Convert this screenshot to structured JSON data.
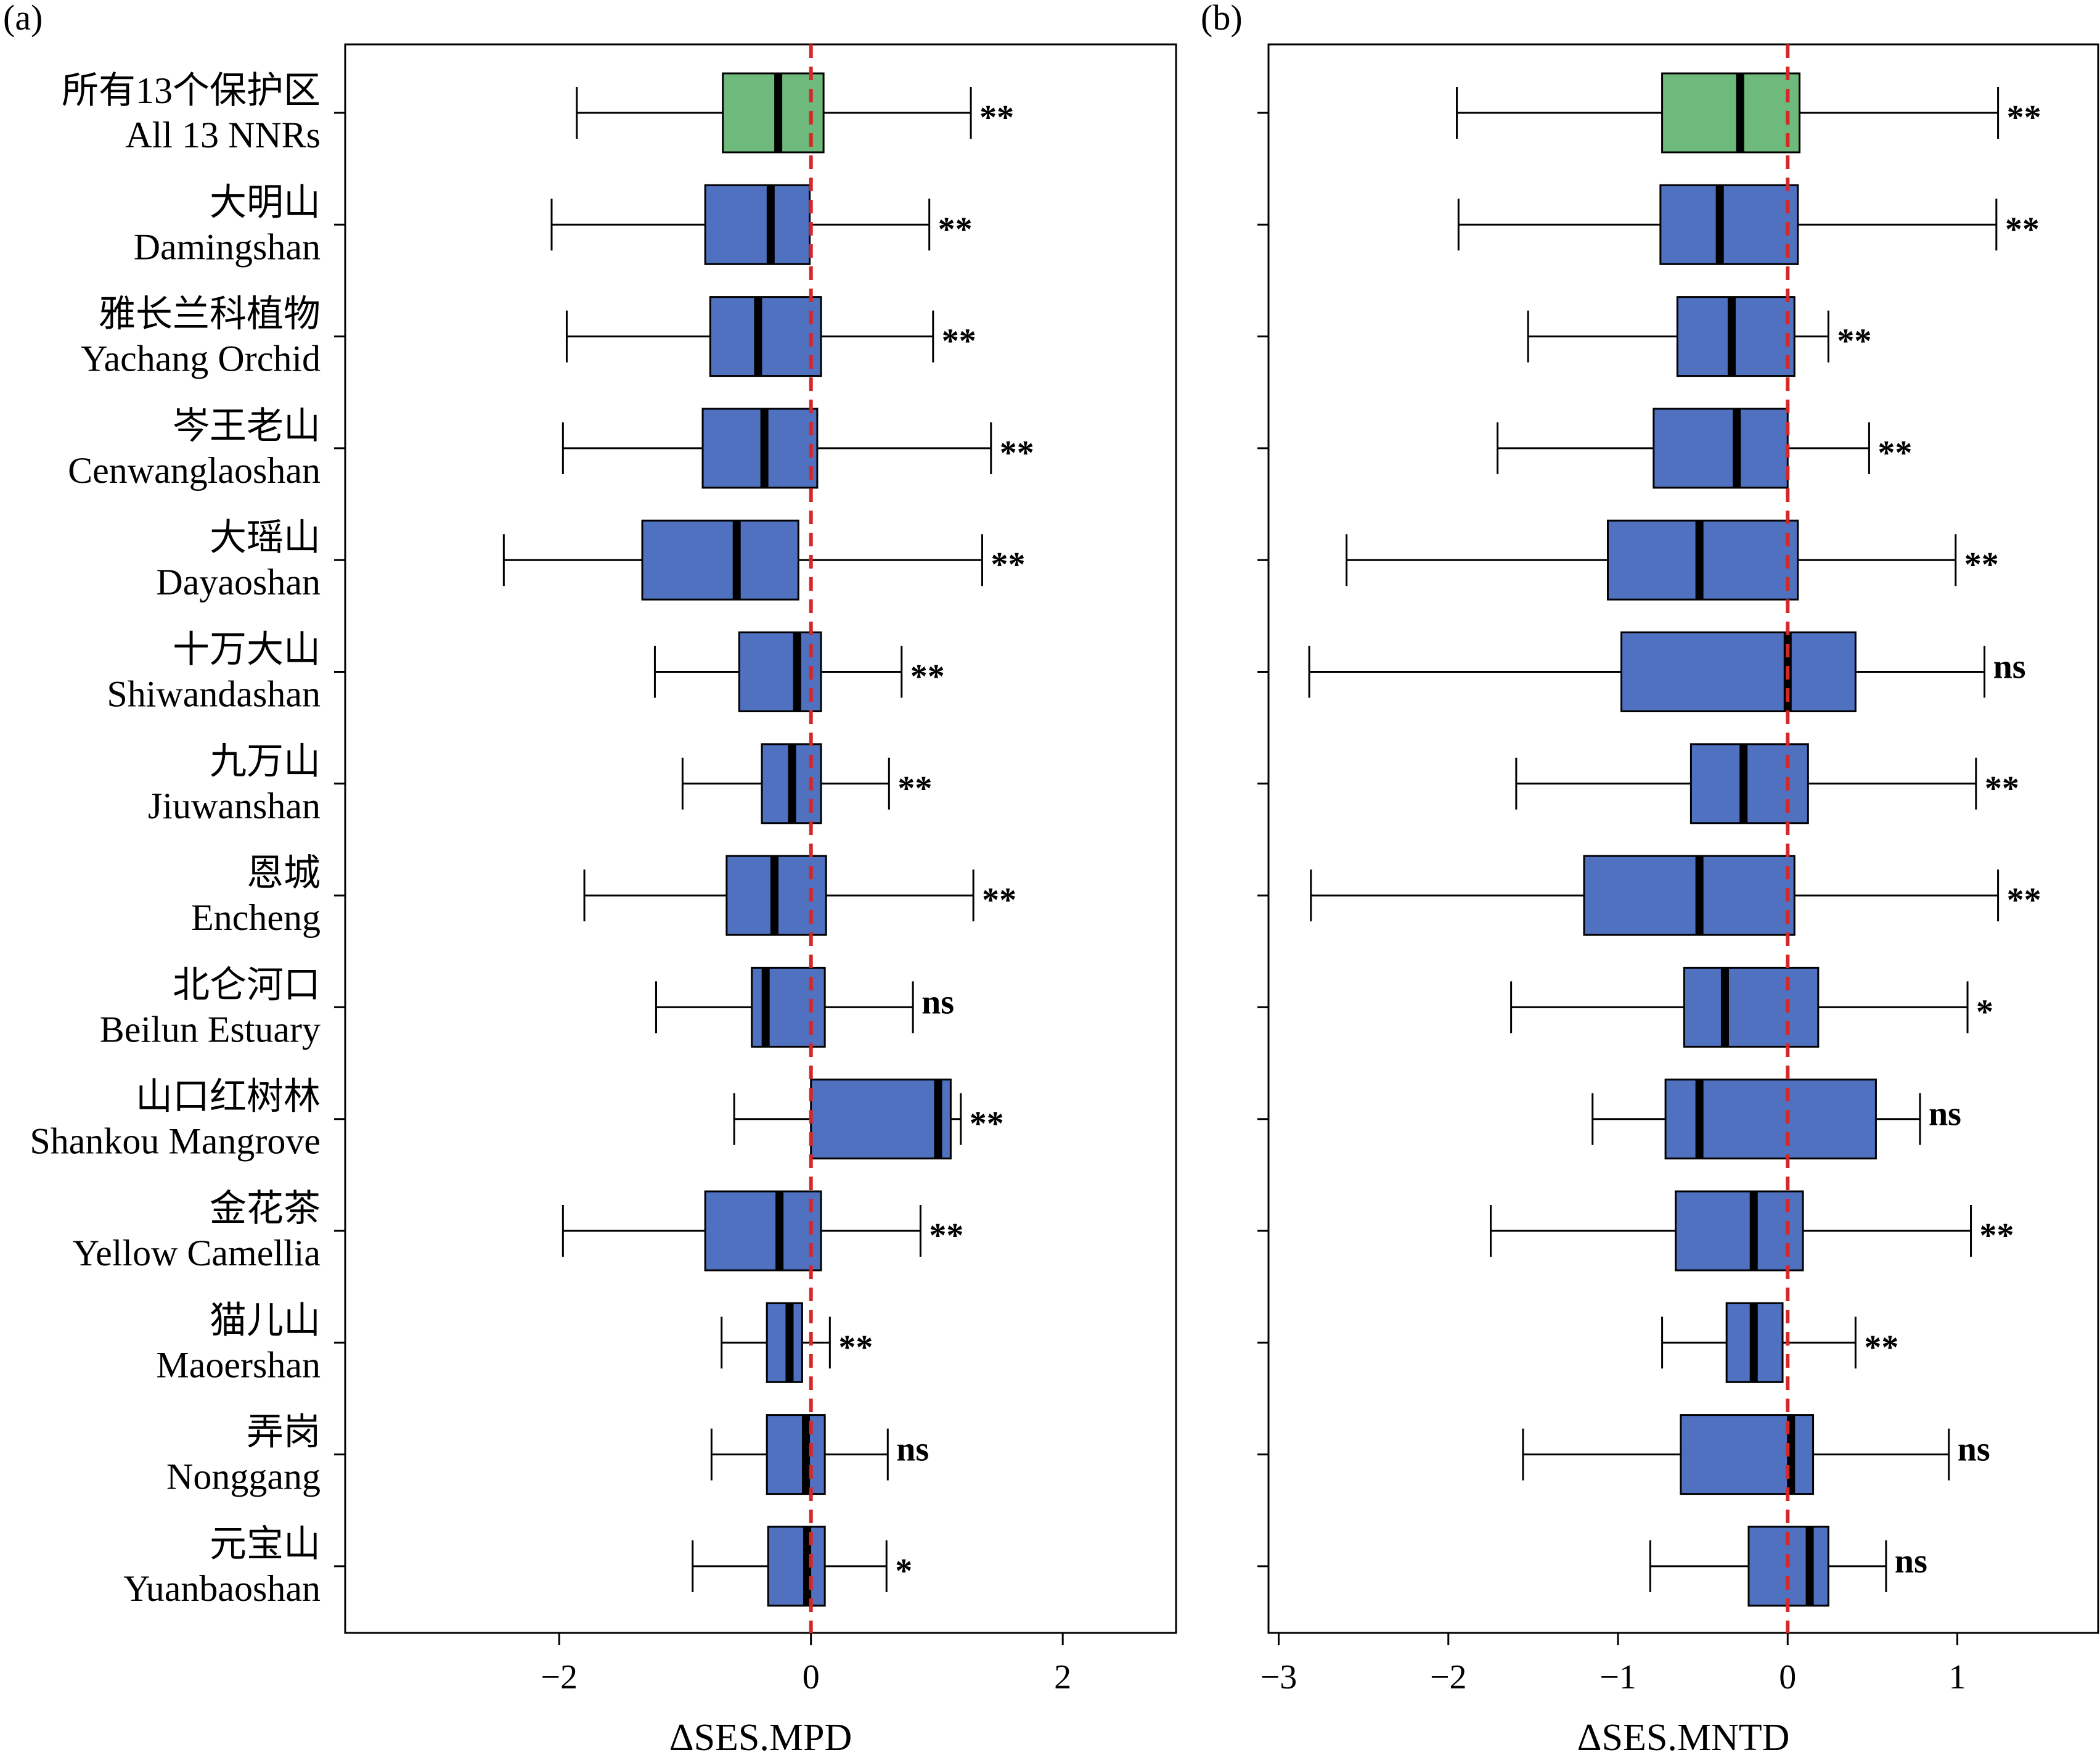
{
  "chart_data": [
    {
      "type": "box",
      "panel_label": "(a)",
      "xlabel": "ΔSES.MPD",
      "xlim": [
        -3.7,
        2.9
      ],
      "xticks": [
        -2,
        0,
        2
      ],
      "xtick_labels": [
        "−2",
        "0",
        "2"
      ],
      "reference_line": 0,
      "boxes": [
        {
          "min": -1.86,
          "q1": -0.7,
          "median": -0.26,
          "q3": 0.1,
          "max": 1.27,
          "sig": "**",
          "color": "#6dba7c"
        },
        {
          "min": -2.06,
          "q1": -0.84,
          "median": -0.32,
          "q3": -0.01,
          "max": 0.94,
          "sig": "**",
          "color": "#4f71c0"
        },
        {
          "min": -1.94,
          "q1": -0.8,
          "median": -0.42,
          "q3": 0.08,
          "max": 0.97,
          "sig": "**",
          "color": "#4f71c0"
        },
        {
          "min": -1.97,
          "q1": -0.86,
          "median": -0.37,
          "q3": 0.05,
          "max": 1.43,
          "sig": "**",
          "color": "#4f71c0"
        },
        {
          "min": -2.44,
          "q1": -1.34,
          "median": -0.59,
          "q3": -0.1,
          "max": 1.36,
          "sig": "**",
          "color": "#4f71c0"
        },
        {
          "min": -1.24,
          "q1": -0.57,
          "median": -0.11,
          "q3": 0.08,
          "max": 0.72,
          "sig": "**",
          "color": "#4f71c0"
        },
        {
          "min": -1.02,
          "q1": -0.39,
          "median": -0.15,
          "q3": 0.08,
          "max": 0.62,
          "sig": "**",
          "color": "#4f71c0"
        },
        {
          "min": -1.8,
          "q1": -0.67,
          "median": -0.29,
          "q3": 0.12,
          "max": 1.29,
          "sig": "**",
          "color": "#4f71c0"
        },
        {
          "min": -1.23,
          "q1": -0.47,
          "median": -0.36,
          "q3": 0.11,
          "max": 0.81,
          "sig": "ns",
          "color": "#4f71c0"
        },
        {
          "min": -0.61,
          "q1": 0.0,
          "median": 1.01,
          "q3": 1.11,
          "max": 1.19,
          "sig": "**",
          "color": "#4f71c0"
        },
        {
          "min": -1.97,
          "q1": -0.84,
          "median": -0.25,
          "q3": 0.08,
          "max": 0.87,
          "sig": "**",
          "color": "#4f71c0"
        },
        {
          "min": -0.71,
          "q1": -0.35,
          "median": -0.17,
          "q3": -0.07,
          "max": 0.15,
          "sig": "**",
          "color": "#4f71c0"
        },
        {
          "min": -0.79,
          "q1": -0.35,
          "median": -0.04,
          "q3": 0.11,
          "max": 0.61,
          "sig": "ns",
          "color": "#4f71c0"
        },
        {
          "min": -0.94,
          "q1": -0.34,
          "median": -0.03,
          "q3": 0.11,
          "max": 0.6,
          "sig": "*",
          "color": "#4f71c0"
        }
      ]
    },
    {
      "type": "box",
      "panel_label": "(b)",
      "xlabel": "ΔSES.MNTD",
      "xlim": [
        -3.06,
        1.83
      ],
      "xticks": [
        -3,
        -2,
        -1,
        0,
        1
      ],
      "xtick_labels": [
        "−3",
        "−2",
        "−1",
        "0",
        "1"
      ],
      "reference_line": 0,
      "boxes": [
        {
          "min": -1.95,
          "q1": -0.74,
          "median": -0.28,
          "q3": 0.07,
          "max": 1.24,
          "sig": "**",
          "color": "#6dba7c"
        },
        {
          "min": -1.94,
          "q1": -0.75,
          "median": -0.4,
          "q3": 0.06,
          "max": 1.23,
          "sig": "**",
          "color": "#4f71c0"
        },
        {
          "min": -1.53,
          "q1": -0.65,
          "median": -0.33,
          "q3": 0.04,
          "max": 0.24,
          "sig": "**",
          "color": "#4f71c0"
        },
        {
          "min": -1.71,
          "q1": -0.79,
          "median": -0.3,
          "q3": 0.0,
          "max": 0.48,
          "sig": "**",
          "color": "#4f71c0"
        },
        {
          "min": -2.6,
          "q1": -1.06,
          "median": -0.52,
          "q3": 0.06,
          "max": 0.99,
          "sig": "**",
          "color": "#4f71c0"
        },
        {
          "min": -2.82,
          "q1": -0.98,
          "median": 0.0,
          "q3": 0.4,
          "max": 1.16,
          "sig": "ns",
          "color": "#4f71c0"
        },
        {
          "min": -1.6,
          "q1": -0.57,
          "median": -0.26,
          "q3": 0.12,
          "max": 1.11,
          "sig": "**",
          "color": "#4f71c0"
        },
        {
          "min": -2.81,
          "q1": -1.2,
          "median": -0.52,
          "q3": 0.04,
          "max": 1.24,
          "sig": "**",
          "color": "#4f71c0"
        },
        {
          "min": -1.63,
          "q1": -0.61,
          "median": -0.37,
          "q3": 0.18,
          "max": 1.06,
          "sig": "*",
          "color": "#4f71c0"
        },
        {
          "min": -1.15,
          "q1": -0.72,
          "median": -0.52,
          "q3": 0.52,
          "max": 0.78,
          "sig": "ns",
          "color": "#4f71c0"
        },
        {
          "min": -1.75,
          "q1": -0.66,
          "median": -0.2,
          "q3": 0.09,
          "max": 1.08,
          "sig": "**",
          "color": "#4f71c0"
        },
        {
          "min": -0.74,
          "q1": -0.36,
          "median": -0.2,
          "q3": -0.03,
          "max": 0.4,
          "sig": "**",
          "color": "#4f71c0"
        },
        {
          "min": -1.56,
          "q1": -0.63,
          "median": 0.02,
          "q3": 0.15,
          "max": 0.95,
          "sig": "ns",
          "color": "#4f71c0"
        },
        {
          "min": -0.81,
          "q1": -0.23,
          "median": 0.13,
          "q3": 0.24,
          "max": 0.58,
          "sig": "ns",
          "color": "#4f71c0"
        }
      ]
    }
  ],
  "categories": [
    {
      "cn": "所有13个保护区",
      "en": "All 13 NNRs"
    },
    {
      "cn": "大明山",
      "en": "Damingshan"
    },
    {
      "cn": "雅长兰科植物",
      "en": "Yachang Orchid"
    },
    {
      "cn": "岑王老山",
      "en": "Cenwanglaoshan"
    },
    {
      "cn": "大瑶山",
      "en": "Dayaoshan"
    },
    {
      "cn": "十万大山",
      "en": "Shiwandashan"
    },
    {
      "cn": "九万山",
      "en": "Jiuwanshan"
    },
    {
      "cn": "恩城",
      "en": "Encheng"
    },
    {
      "cn": "北仑河口",
      "en": "Beilun Estuary"
    },
    {
      "cn": "山口红树林",
      "en": "Shankou Mangrove"
    },
    {
      "cn": "金花茶",
      "en": "Yellow Camellia"
    },
    {
      "cn": "猫儿山",
      "en": "Maoershan"
    },
    {
      "cn": "弄岗",
      "en": "Nonggang"
    },
    {
      "cn": "元宝山",
      "en": "Yuanbaoshan"
    }
  ],
  "colors": {
    "all_nnrs_box": "#6dba7c",
    "reserve_box": "#4f71c0",
    "reference_line": "#d62728"
  }
}
